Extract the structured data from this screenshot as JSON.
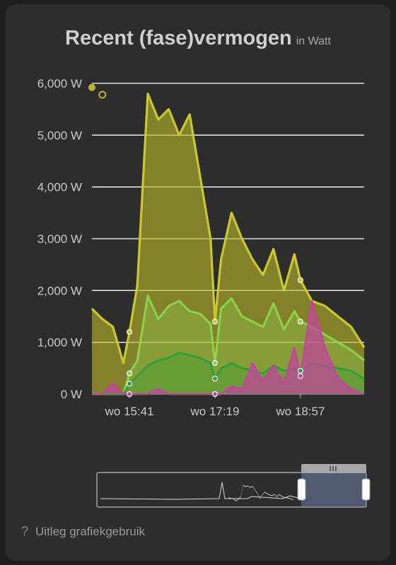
{
  "header": {
    "title": "Recent (fase)vermogen",
    "unit": "in Watt"
  },
  "help": {
    "icon": "question-icon",
    "label": "Uitleg grafiekgebruik"
  },
  "colors": {
    "background": "#2d2d2d",
    "grid": "#ffffff",
    "total": "#b8b62a",
    "phase1": "#8fd14f",
    "phase2": "#2e9e3a",
    "return": "#c2479a",
    "navigator_selection": "#6f7fa8"
  },
  "chart_data": {
    "type": "area",
    "title": "Recent (fase)vermogen",
    "subtitle": "in Watt",
    "xlabel": "",
    "ylabel": "",
    "ylim": [
      0,
      6000
    ],
    "y_ticks": [
      "0 W",
      "1,000 W",
      "2,000 W",
      "3,000 W",
      "4,000 W",
      "5,000 W",
      "6,000 W"
    ],
    "x_ticks": [
      "wo 15:41",
      "wo 17:19",
      "wo 18:57"
    ],
    "xlim": [
      "wo 14:58",
      "wo 20:10"
    ],
    "grid": true,
    "x": [
      "14:58",
      "15:10",
      "15:22",
      "15:34",
      "15:41",
      "15:50",
      "16:02",
      "16:14",
      "16:26",
      "16:38",
      "16:50",
      "17:02",
      "17:14",
      "17:19",
      "17:26",
      "17:38",
      "17:50",
      "18:02",
      "18:14",
      "18:26",
      "18:38",
      "18:50",
      "18:57",
      "19:10",
      "19:25",
      "19:40",
      "19:55",
      "20:10"
    ],
    "series": [
      {
        "values": [
          1650,
          1450,
          1300,
          600,
          1200,
          2100,
          5800,
          5300,
          5500,
          5000,
          5400,
          4200,
          3000,
          1400,
          2600,
          3500,
          3000,
          2600,
          2300,
          2800,
          2000,
          2700,
          2200,
          1800,
          1700,
          1500,
          1300,
          900
        ]
      },
      {
        "values": [
          0,
          0,
          0,
          0,
          400,
          650,
          1900,
          1450,
          1700,
          1800,
          1600,
          1550,
          1350,
          600,
          1650,
          1850,
          1500,
          1400,
          1300,
          1750,
          1250,
          1600,
          1400,
          1300,
          1150,
          1000,
          850,
          650
        ]
      },
      {
        "values": [
          0,
          0,
          0,
          0,
          200,
          350,
          550,
          650,
          700,
          800,
          750,
          700,
          600,
          300,
          500,
          600,
          500,
          450,
          400,
          550,
          450,
          500,
          450,
          600,
          550,
          500,
          450,
          300
        ]
      },
      {
        "values": [
          0,
          0,
          200,
          0,
          0,
          0,
          0,
          100,
          0,
          0,
          0,
          0,
          0,
          0,
          0,
          150,
          100,
          600,
          250,
          550,
          200,
          900,
          350,
          1800,
          900,
          300,
          100,
          0
        ]
      }
    ],
    "markers": [
      {
        "x": "14:58",
        "y": 5920
      },
      {
        "x": "15:10",
        "y": 5780
      }
    ],
    "navigator": {
      "selection_start": "wo 18:57",
      "selection_end": "wo 20:10"
    }
  }
}
